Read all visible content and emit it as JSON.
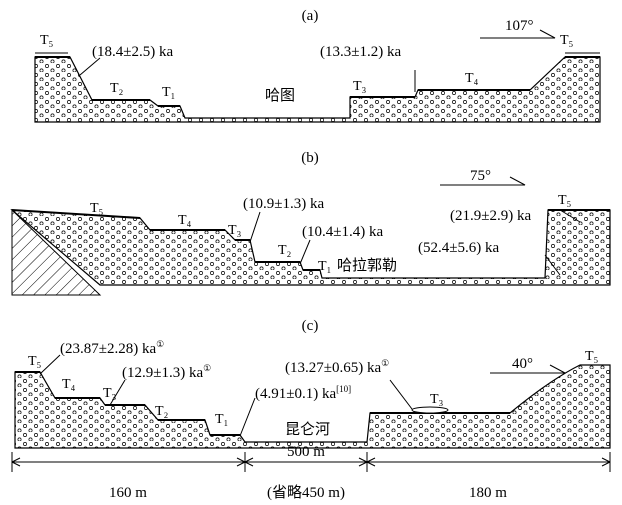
{
  "panels": [
    {
      "label": "(a)",
      "terraces": [
        "T₅",
        "T₂",
        "T₁",
        "T₃",
        "T₄",
        "T₅"
      ],
      "ages": [
        {
          "text": "(18.4±2.5) ka"
        },
        {
          "text": "(13.3±1.2) ka"
        }
      ],
      "place": "哈图",
      "angle": "107°"
    },
    {
      "label": "(b)",
      "terraces": [
        "T₅",
        "T₄",
        "T₃",
        "T₂",
        "T₁",
        "T₅"
      ],
      "ages": [
        {
          "text": "(10.9±1.3) ka"
        },
        {
          "text": "(10.4±1.4) ka"
        },
        {
          "text": "(21.9±2.9) ka"
        },
        {
          "text": "(52.4±5.6) ka"
        }
      ],
      "place": "哈拉郭勒",
      "angle": "75°"
    },
    {
      "label": "(c)",
      "terraces": [
        "T₅",
        "T₄",
        "T₃",
        "T₂",
        "T₁",
        "T₃",
        "T₅"
      ],
      "ages": [
        {
          "text": "(23.87±2.28) ka",
          "note": "①"
        },
        {
          "text": "(12.9±1.3) ka",
          "note": "①"
        },
        {
          "text": "(4.91±0.1) ka",
          "note": "[10]"
        },
        {
          "text": "(13.27±0.65) ka",
          "note": "①"
        }
      ],
      "place": "昆仑河",
      "angle": "40°"
    }
  ],
  "scale": {
    "segments": [
      "160 m",
      "500 m",
      "180 m"
    ],
    "note": "(省略450 m)"
  }
}
